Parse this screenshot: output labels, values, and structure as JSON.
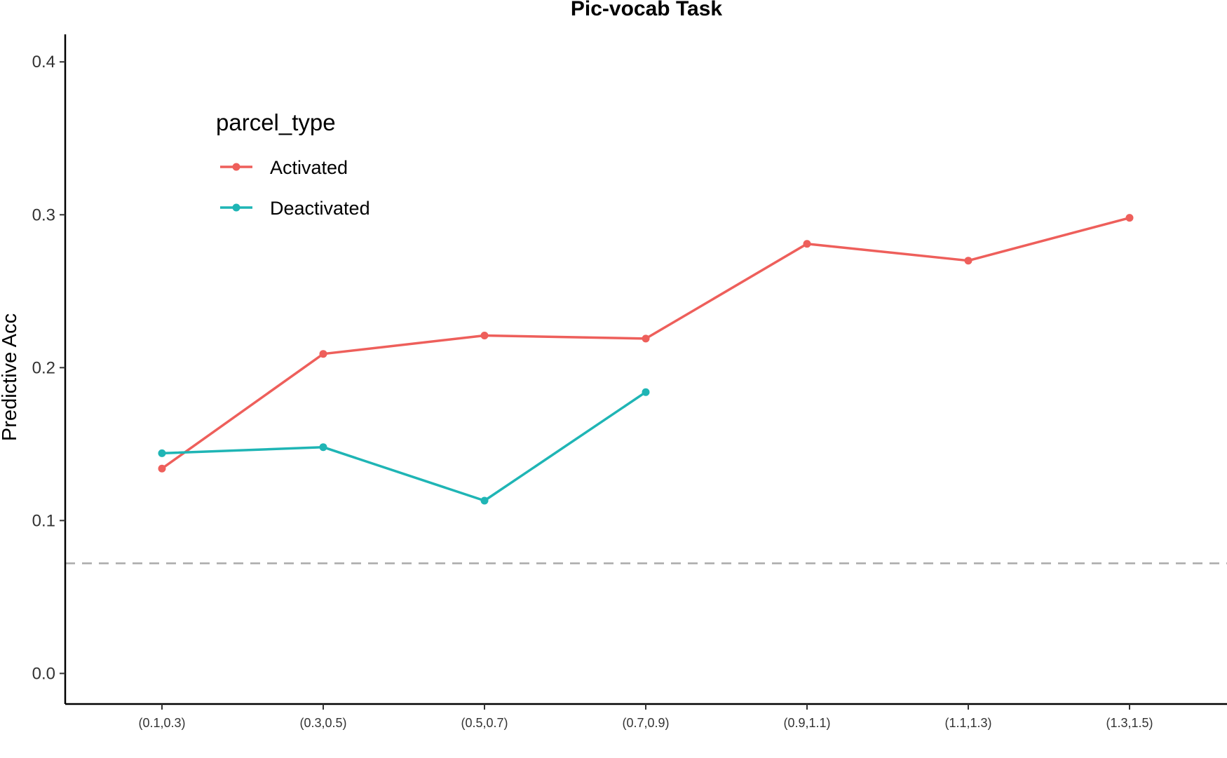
{
  "chart_data": {
    "type": "line",
    "title": "Pic-vocab Task",
    "xlabel": "",
    "ylabel": "Predictive Acc",
    "categories": [
      "(0.1,0.3)",
      "(0.3,0.5)",
      "(0.5,0.7)",
      "(0.7,0.9)",
      "(0.9,1.1)",
      "(1.1,1.3)",
      "(1.3,1.5)"
    ],
    "ylim": [
      -0.02,
      0.418
    ],
    "yticks": [
      0.0,
      0.1,
      0.2,
      0.3,
      0.4
    ],
    "ytick_labels": [
      "0.0",
      "0.1",
      "0.2",
      "0.3",
      "0.4"
    ],
    "reference_line": {
      "y": 0.072,
      "style": "dashed",
      "color": "#aaaaaa"
    },
    "legend": {
      "title": "parcel_type",
      "placement": "top-left"
    },
    "series": [
      {
        "name": "Activated",
        "color": "#ee5f5b",
        "values": [
          0.134,
          0.209,
          0.221,
          0.219,
          0.281,
          0.27,
          0.298
        ]
      },
      {
        "name": "Deactivated",
        "color": "#1fb5b5",
        "values": [
          0.144,
          0.148,
          0.113,
          0.184,
          null,
          null,
          null
        ]
      }
    ],
    "grid": false
  }
}
